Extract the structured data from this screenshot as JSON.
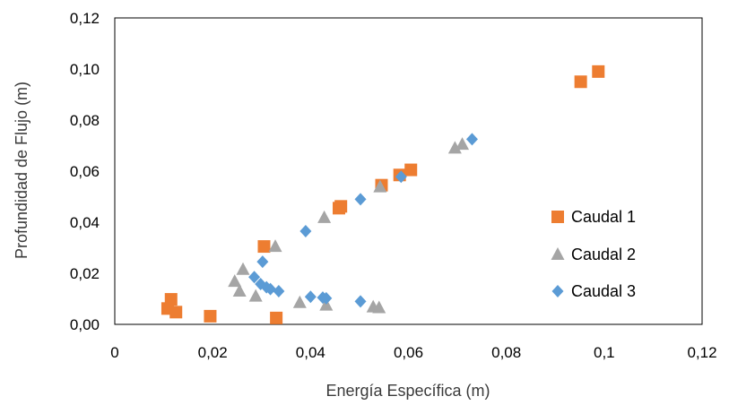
{
  "chart_data": {
    "type": "scatter",
    "title": "",
    "xlabel": "Energía Específica (m)",
    "ylabel": "Profundidad  de Flujo (m)",
    "xlim": [
      0,
      0.12
    ],
    "ylim": [
      0,
      0.12
    ],
    "x_ticks": [
      "0",
      "0,02",
      "0,04",
      "0,06",
      "0,08",
      "0,1",
      "0,12"
    ],
    "y_ticks": [
      "0,00",
      "0,02",
      "0,04",
      "0,06",
      "0,08",
      "0,10",
      "0,12"
    ],
    "grid": false,
    "legend_position": "right",
    "series": [
      {
        "name": "Caudal 1",
        "color": "#ED7D31",
        "marker": "square",
        "points": [
          [
            0.0108,
            0.0062
          ],
          [
            0.0115,
            0.0098
          ],
          [
            0.0125,
            0.0048
          ],
          [
            0.0195,
            0.0032
          ],
          [
            0.033,
            0.0025
          ],
          [
            0.0305,
            0.0305
          ],
          [
            0.0458,
            0.0455
          ],
          [
            0.0462,
            0.0462
          ],
          [
            0.0545,
            0.0545
          ],
          [
            0.0582,
            0.0585
          ],
          [
            0.0605,
            0.0605
          ],
          [
            0.0952,
            0.095
          ],
          [
            0.0988,
            0.099
          ]
        ]
      },
      {
        "name": "Caudal 2",
        "color": "#A5A5A5",
        "marker": "triangle",
        "points": [
          [
            0.0245,
            0.0168
          ],
          [
            0.0255,
            0.013
          ],
          [
            0.0262,
            0.0215
          ],
          [
            0.0288,
            0.011
          ],
          [
            0.0328,
            0.0305
          ],
          [
            0.0378,
            0.0085
          ],
          [
            0.0432,
            0.0075
          ],
          [
            0.0428,
            0.0418
          ],
          [
            0.0528,
            0.0068
          ],
          [
            0.054,
            0.0065
          ],
          [
            0.0542,
            0.0538
          ],
          [
            0.0695,
            0.069
          ],
          [
            0.071,
            0.0705
          ]
        ]
      },
      {
        "name": "Caudal 3",
        "color": "#5B9BD5",
        "marker": "diamond",
        "points": [
          [
            0.0285,
            0.0185
          ],
          [
            0.0298,
            0.0158
          ],
          [
            0.0302,
            0.0245
          ],
          [
            0.031,
            0.0145
          ],
          [
            0.0318,
            0.0138
          ],
          [
            0.0335,
            0.013
          ],
          [
            0.039,
            0.0365
          ],
          [
            0.04,
            0.0108
          ],
          [
            0.0425,
            0.0105
          ],
          [
            0.0432,
            0.0102
          ],
          [
            0.0502,
            0.009
          ],
          [
            0.0502,
            0.049
          ],
          [
            0.0585,
            0.0578
          ],
          [
            0.073,
            0.0725
          ]
        ]
      }
    ]
  }
}
